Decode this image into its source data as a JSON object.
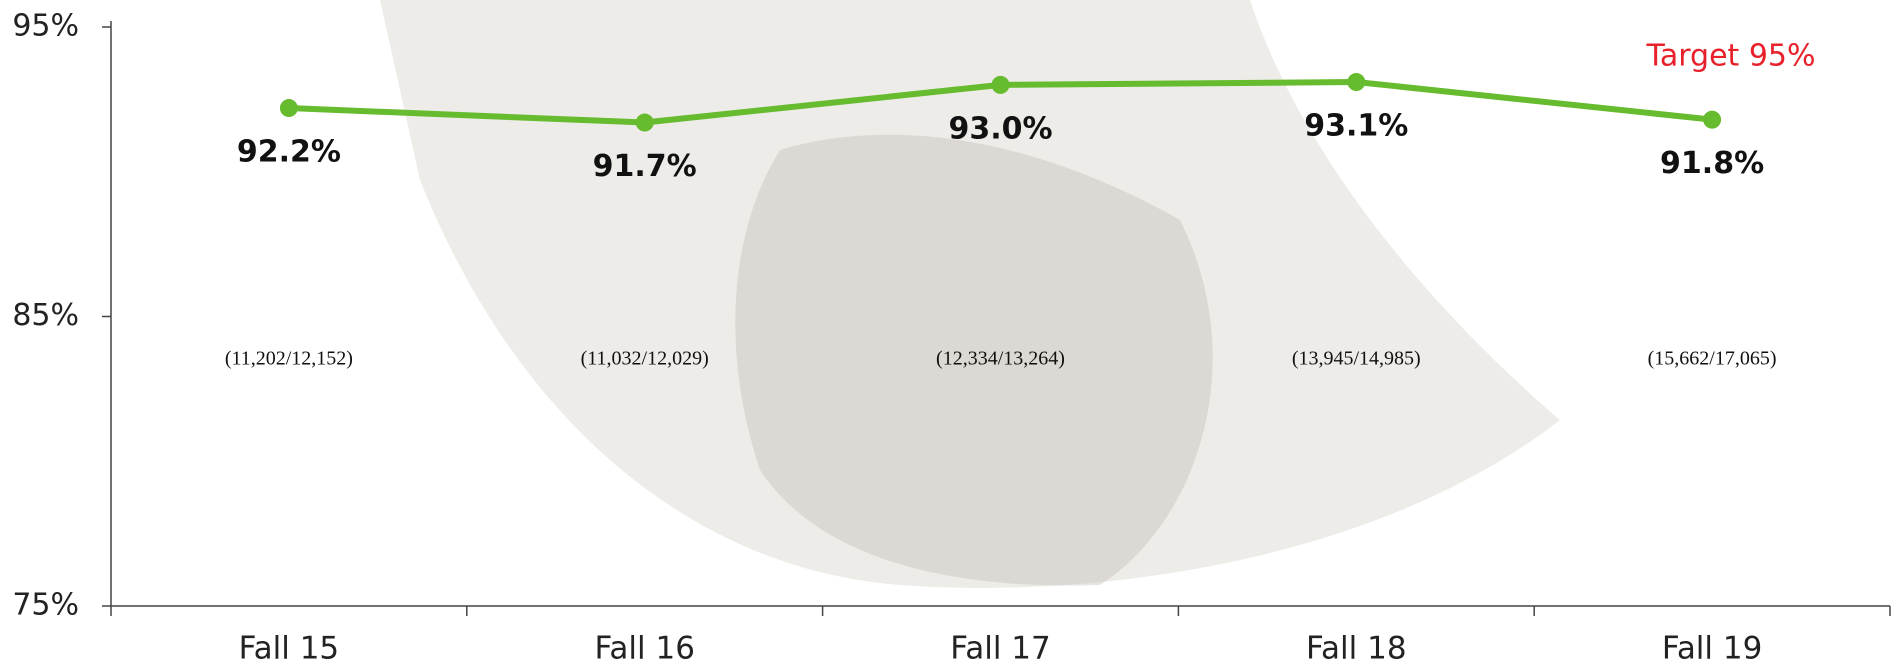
{
  "chart_data": {
    "type": "line",
    "categories": [
      "Fall 15",
      "Fall 16",
      "Fall 17",
      "Fall 18",
      "Fall 19"
    ],
    "values": [
      92.2,
      91.7,
      93.0,
      93.1,
      91.8
    ],
    "value_labels": [
      "92.2%",
      "91.7%",
      "93.0%",
      "93.1%",
      "91.8%"
    ],
    "counts": [
      "(11,202/12,152)",
      "(11,032/12,029)",
      "(12,334/13,264)",
      "(13,945/14,985)",
      "(15,662/17,065)"
    ],
    "color": "#66bb2e",
    "ylim": [
      75,
      95
    ],
    "yticks": [
      {
        "value": 75,
        "label": "75%"
      },
      {
        "value": 85,
        "label": "85%"
      },
      {
        "value": 95,
        "label": "95%"
      }
    ],
    "annotation": "Target 95%",
    "grid": false
  }
}
